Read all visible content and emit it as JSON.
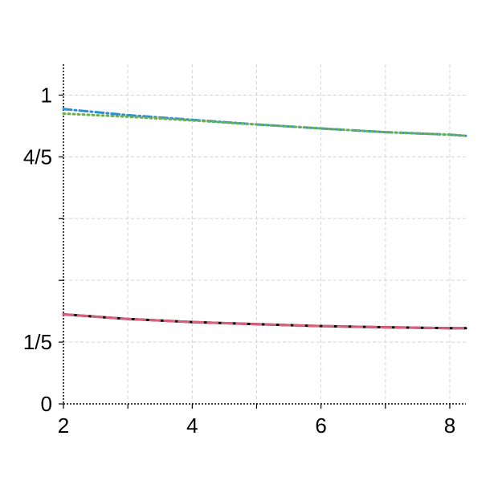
{
  "chart_data": {
    "type": "line",
    "title": "",
    "xlabel": "",
    "ylabel": "",
    "xlim": [
      2,
      8.25
    ],
    "ylim": [
      0,
      1.1
    ],
    "grid": true,
    "x_ticks": [
      2,
      3,
      4,
      5,
      6,
      7,
      8
    ],
    "x_tick_labels": [
      {
        "value": 2,
        "label": "2"
      },
      {
        "value": 4,
        "label": "4"
      },
      {
        "value": 6,
        "label": "6"
      },
      {
        "value": 8,
        "label": "8"
      }
    ],
    "y_ticks": [
      0,
      0.2,
      0.4,
      0.6,
      0.8,
      1.0
    ],
    "y_tick_labels": [
      {
        "value": 0,
        "label": "0"
      },
      {
        "value": 0.2,
        "label": "1/5"
      },
      {
        "value": 0.8,
        "label": "4/5"
      },
      {
        "value": 1.0,
        "label": "1"
      }
    ],
    "series": [
      {
        "color": "#2b8fd6",
        "style": "dashdot",
        "x": [
          2,
          3,
          4,
          5,
          6,
          7,
          8,
          8.25
        ],
        "y": [
          0.955,
          0.935,
          0.92,
          0.905,
          0.892,
          0.88,
          0.872,
          0.868
        ]
      },
      {
        "color": "#6ab04c",
        "style": "dotted",
        "x": [
          2,
          3,
          4,
          5,
          6,
          7,
          8,
          8.25
        ],
        "y": [
          0.94,
          0.93,
          0.918,
          0.905,
          0.892,
          0.88,
          0.872,
          0.868
        ]
      },
      {
        "color": "#000000",
        "style": "solid",
        "x": [
          2,
          3,
          4,
          5,
          6,
          7,
          8,
          8.25
        ],
        "y": [
          0.29,
          0.275,
          0.265,
          0.258,
          0.252,
          0.248,
          0.245,
          0.245
        ]
      },
      {
        "color": "#d95f7a",
        "style": "dashed",
        "x": [
          2,
          3,
          4,
          5,
          6,
          7,
          8,
          8.25
        ],
        "y": [
          0.29,
          0.275,
          0.265,
          0.258,
          0.252,
          0.248,
          0.245,
          0.245
        ]
      }
    ]
  }
}
